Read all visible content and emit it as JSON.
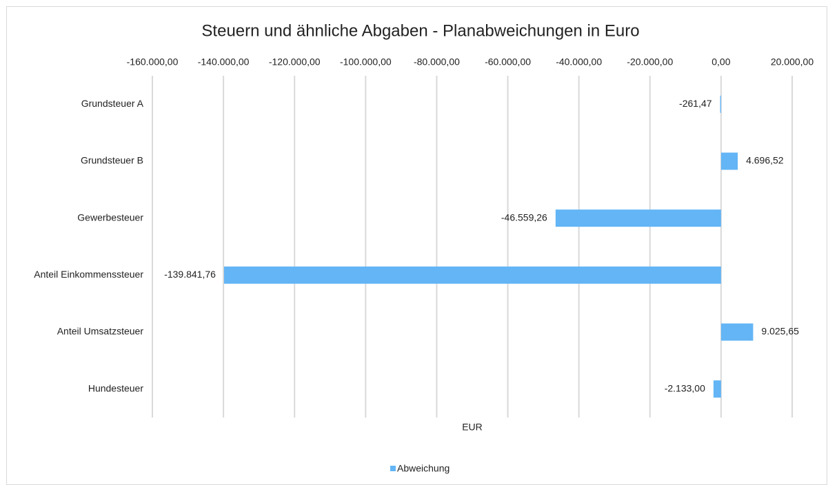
{
  "chart_data": {
    "type": "bar",
    "orientation": "horizontal",
    "title": "Steuern und ähnliche Abgaben - Planabweichungen in Euro",
    "x_label": "EUR",
    "categories": [
      "Grundsteuer A",
      "Grundsteuer B",
      "Gewerbesteuer",
      "Anteil Einkommenssteuer",
      "Anteil Umsatzsteuer",
      "Hundesteuer"
    ],
    "series": [
      {
        "name": "Abweichung",
        "color": "#63b5f5",
        "values": [
          -261.47,
          4696.52,
          -46559.26,
          -139841.76,
          9025.65,
          -2133.0
        ],
        "value_labels": [
          "-261,47",
          "4.696,52",
          "-46.559,26",
          "-139.841,76",
          "9.025,65",
          "-2.133,00"
        ]
      }
    ],
    "xlim": [
      -160000,
      20000
    ],
    "xticks": [
      {
        "value": -160000,
        "label": "-160.000,00"
      },
      {
        "value": -140000,
        "label": "-140.000,00"
      },
      {
        "value": -120000,
        "label": "-120.000,00"
      },
      {
        "value": -100000,
        "label": "-100.000,00"
      },
      {
        "value": -80000,
        "label": "-80.000,00"
      },
      {
        "value": -60000,
        "label": "-60.000,00"
      },
      {
        "value": -40000,
        "label": "-40.000,00"
      },
      {
        "value": -20000,
        "label": "-20.000,00"
      },
      {
        "value": 0,
        "label": "0,00"
      },
      {
        "value": 20000,
        "label": "20.000,00"
      }
    ],
    "grid": true,
    "legend": "bottom"
  }
}
